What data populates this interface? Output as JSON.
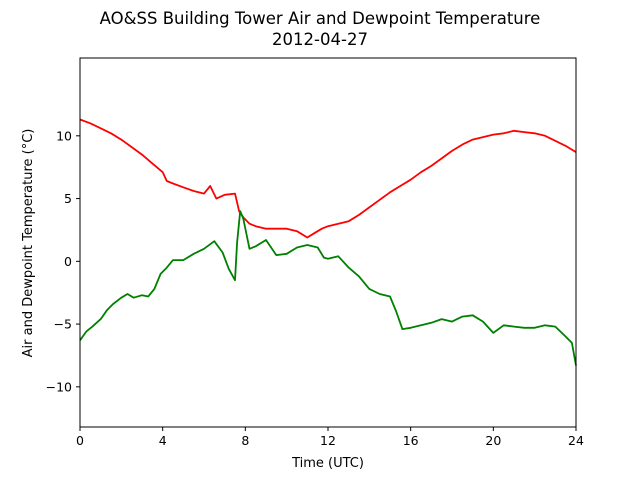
{
  "chart_data": {
    "type": "line",
    "title": "AO&SS Building Tower Air and Dewpoint Temperature",
    "subtitle": "2012-04-27",
    "xlabel": "Time (UTC)",
    "ylabel": "Air and Dewpoint Temperature (°C)",
    "xlim": [
      0,
      24
    ],
    "ylim": [
      -13.2,
      16.2
    ],
    "xticks": [
      0,
      4,
      8,
      12,
      16,
      20,
      24
    ],
    "yticks": [
      -10,
      -5,
      0,
      5,
      10
    ],
    "grid": false,
    "series": [
      {
        "color": "#ff0000",
        "x": [
          0,
          0.5,
          1,
          1.5,
          2,
          2.5,
          3,
          3.5,
          4,
          4.2,
          4.5,
          5,
          5.5,
          6,
          6.3,
          6.6,
          7,
          7.5,
          7.7,
          7.9,
          8.2,
          8.5,
          9,
          9.5,
          10,
          10.5,
          11,
          11.3,
          11.7,
          12,
          12.5,
          13,
          13.5,
          14,
          14.5,
          15,
          15.5,
          16,
          16.5,
          17,
          17.5,
          18,
          18.5,
          19,
          19.5,
          20,
          20.5,
          21,
          21.5,
          22,
          22.5,
          23,
          23.5,
          24
        ],
        "y": [
          11.3,
          11.0,
          10.6,
          10.2,
          9.7,
          9.1,
          8.5,
          7.8,
          7.1,
          6.4,
          6.2,
          5.9,
          5.6,
          5.4,
          6.0,
          5.0,
          5.3,
          5.4,
          4.0,
          3.5,
          3.0,
          2.8,
          2.6,
          2.6,
          2.6,
          2.4,
          1.9,
          2.2,
          2.6,
          2.8,
          3.0,
          3.2,
          3.7,
          4.3,
          4.9,
          5.5,
          6.0,
          6.5,
          7.1,
          7.6,
          8.2,
          8.8,
          9.3,
          9.7,
          9.9,
          10.1,
          10.2,
          10.4,
          10.3,
          10.2,
          10.0,
          9.6,
          9.2,
          8.7
        ]
      },
      {
        "color": "#008000",
        "x": [
          0,
          0.3,
          0.6,
          1,
          1.3,
          1.6,
          2,
          2.3,
          2.6,
          3,
          3.3,
          3.6,
          3.9,
          4.2,
          4.5,
          5,
          5.5,
          6,
          6.5,
          6.9,
          7.2,
          7.5,
          7.6,
          7.75,
          7.9,
          8.2,
          8.5,
          9,
          9.5,
          10,
          10.5,
          11,
          11.5,
          11.8,
          12,
          12.5,
          13,
          13.5,
          14,
          14.5,
          15,
          15.3,
          15.6,
          16,
          16.5,
          17,
          17.5,
          18,
          18.5,
          19,
          19.5,
          20,
          20.5,
          21,
          21.5,
          22,
          22.5,
          23,
          23.5,
          23.8,
          24
        ],
        "y": [
          -6.3,
          -5.6,
          -5.2,
          -4.6,
          -3.9,
          -3.4,
          -2.9,
          -2.6,
          -2.9,
          -2.7,
          -2.8,
          -2.2,
          -1.0,
          -0.5,
          0.1,
          0.1,
          0.6,
          1.0,
          1.6,
          0.7,
          -0.6,
          -1.5,
          1.5,
          4.0,
          3.4,
          1.0,
          1.2,
          1.7,
          0.5,
          0.6,
          1.1,
          1.3,
          1.1,
          0.3,
          0.2,
          0.4,
          -0.5,
          -1.2,
          -2.2,
          -2.6,
          -2.8,
          -4.0,
          -5.4,
          -5.3,
          -5.1,
          -4.9,
          -4.6,
          -4.8,
          -4.4,
          -4.3,
          -4.8,
          -5.7,
          -5.1,
          -5.2,
          -5.3,
          -5.3,
          -5.1,
          -5.2,
          -6.0,
          -6.5,
          -8.3
        ]
      }
    ]
  }
}
